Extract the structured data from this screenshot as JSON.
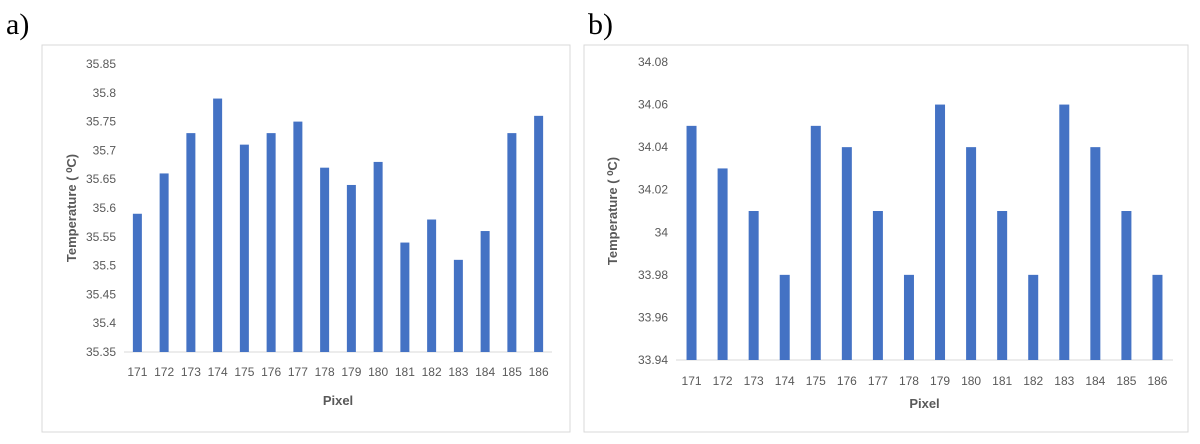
{
  "panels": [
    {
      "label": "a)"
    },
    {
      "label": "b)"
    }
  ],
  "chart_data": [
    {
      "type": "bar",
      "title": "",
      "xlabel": "Pixel",
      "ylabel": "Temperature ( ⁰C)",
      "categories": [
        "171",
        "172",
        "173",
        "174",
        "175",
        "176",
        "177",
        "178",
        "179",
        "180",
        "181",
        "182",
        "183",
        "184",
        "185",
        "186"
      ],
      "values": [
        35.59,
        35.66,
        35.73,
        35.79,
        35.71,
        35.73,
        35.75,
        35.67,
        35.64,
        35.68,
        35.54,
        35.58,
        35.51,
        35.56,
        35.73,
        35.76
      ],
      "ylim": [
        35.35,
        35.85
      ],
      "yticks": [
        "35.35",
        "35.4",
        "35.45",
        "35.5",
        "35.55",
        "35.6",
        "35.65",
        "35.7",
        "35.75",
        "35.8",
        "35.85"
      ],
      "grid": false,
      "bar_color": "#4472C4"
    },
    {
      "type": "bar",
      "title": "",
      "xlabel": "Pixel",
      "ylabel": "Temperature ( ⁰C)",
      "categories": [
        "171",
        "172",
        "173",
        "174",
        "175",
        "176",
        "177",
        "178",
        "179",
        "180",
        "181",
        "182",
        "183",
        "184",
        "185",
        "186"
      ],
      "values": [
        34.05,
        34.03,
        34.01,
        33.98,
        34.05,
        34.04,
        34.01,
        33.98,
        34.06,
        34.04,
        34.01,
        33.98,
        34.06,
        34.04,
        34.01,
        33.98
      ],
      "ylim": [
        33.94,
        34.08
      ],
      "yticks": [
        "33.94",
        "33.96",
        "33.98",
        "34",
        "34.02",
        "34.04",
        "34.06",
        "34.08"
      ],
      "grid": false,
      "bar_color": "#4472C4"
    }
  ]
}
